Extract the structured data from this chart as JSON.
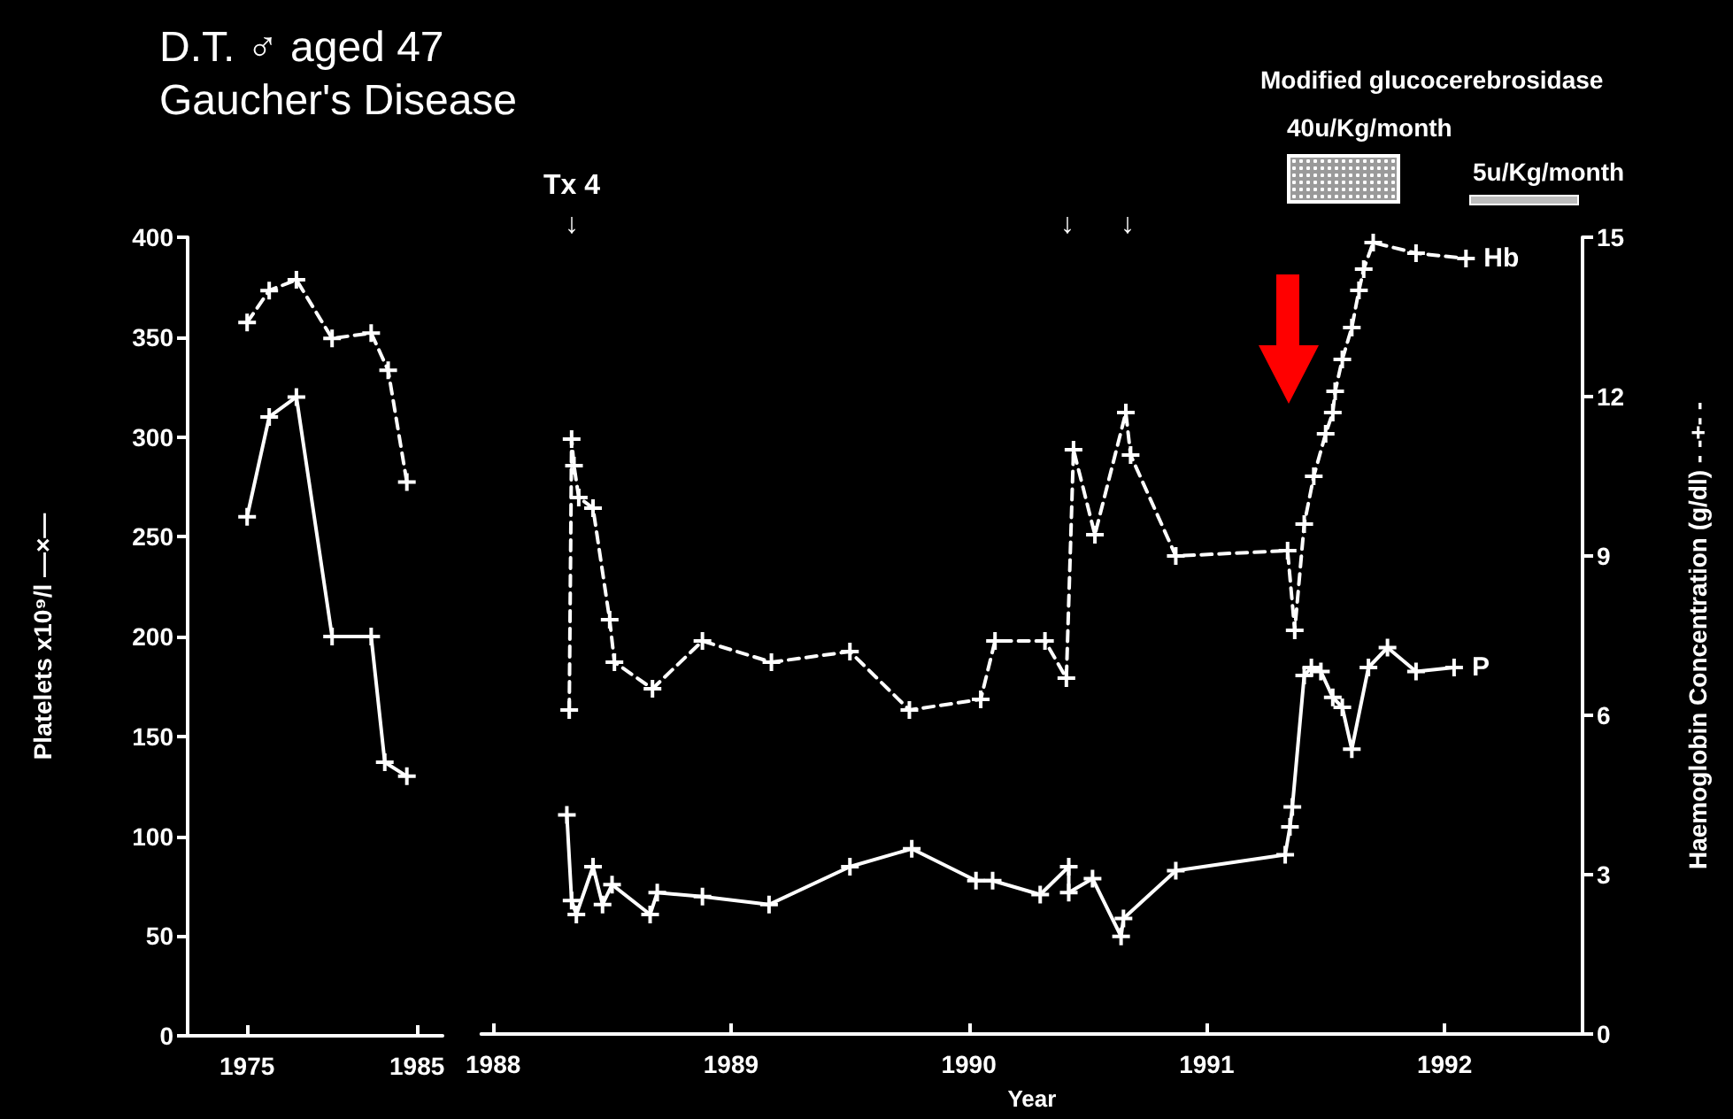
{
  "chart_data": [
    {
      "type": "line",
      "title": "D.T. ♂ aged 47",
      "subtitle": "Gaucher's Disease",
      "ylabel": "Platelets x10⁹/l —×—",
      "xlim": [
        1971.5,
        1986.5
      ],
      "xticks": [
        1975,
        1985
      ],
      "ylim": [
        0,
        400
      ],
      "yticks": [
        0,
        50,
        100,
        150,
        200,
        250,
        300,
        350,
        400
      ],
      "y2lim": [
        0,
        15
      ],
      "series": [
        {
          "color": "#ffffff",
          "marker": "cross",
          "line_style": "solid",
          "x": [
            1975,
            1976.3,
            1977.9,
            1980,
            1982.3,
            1983.1,
            1984.4
          ],
          "values": [
            260,
            310,
            320,
            200,
            200,
            137,
            130
          ]
        },
        {
          "color": "#ffffff",
          "marker": "cross",
          "line_style": "dashed",
          "axis": "y2",
          "x": [
            1975,
            1976.3,
            1977.9,
            1980,
            1982.3,
            1983.3,
            1984.4
          ],
          "values": [
            13.4,
            14.0,
            14.2,
            13.1,
            13.2,
            12.5,
            10.4
          ]
        }
      ]
    },
    {
      "type": "line",
      "xlabel": "Year",
      "y2label": "Haemoglobin Concentration (g/dl) - -+- -",
      "xlim": [
        1987.95,
        1992.58
      ],
      "xticks": [
        1988,
        1989,
        1990,
        1991,
        1992
      ],
      "ylim": [
        0,
        400
      ],
      "y2lim": [
        0,
        15
      ],
      "y2ticks": [
        0,
        3,
        6,
        9,
        12,
        15
      ],
      "annotations": [
        "Modified glucocerebrosidase",
        "40u/Kg/month",
        "5u/Kg/month",
        "Tx 4",
        "↓",
        "↓",
        "↓"
      ],
      "series": [
        {
          "name": "P",
          "color": "#ffffff",
          "marker": "cross",
          "line_style": "solid",
          "x": [
            1988.31,
            1988.33,
            1988.35,
            1988.42,
            1988.46,
            1988.5,
            1988.66,
            1988.69,
            1988.88,
            1989.16,
            1989.5,
            1989.76,
            1990.03,
            1990.1,
            1990.3,
            1990.42,
            1990.42,
            1990.52,
            1990.64,
            1990.65,
            1990.87,
            1991.33,
            1991.35,
            1991.36,
            1991.41,
            1991.44,
            1991.48,
            1991.53,
            1991.57,
            1991.61,
            1991.68,
            1991.76,
            1991.88,
            1992.04
          ],
          "values": [
            110,
            67,
            60,
            84,
            65,
            75,
            60,
            71,
            69,
            65,
            84,
            93,
            77,
            77,
            70,
            84,
            71,
            78,
            49,
            58,
            82,
            90,
            104,
            114,
            180,
            184,
            182,
            169,
            164,
            143,
            184,
            194,
            182,
            184
          ]
        },
        {
          "name": "Hb",
          "color": "#ffffff",
          "marker": "cross",
          "line_style": "dashed",
          "axis": "y2",
          "x": [
            1988.32,
            1988.33,
            1988.34,
            1988.36,
            1988.42,
            1988.49,
            1988.51,
            1988.67,
            1988.88,
            1989.17,
            1989.5,
            1989.75,
            1990.05,
            1990.11,
            1990.32,
            1990.41,
            1990.44,
            1990.53,
            1990.66,
            1990.68,
            1990.87,
            1991.34,
            1991.37,
            1991.41,
            1991.45,
            1991.5,
            1991.53,
            1991.54,
            1991.57,
            1991.61,
            1991.64,
            1991.66,
            1991.7,
            1991.88,
            1992.09
          ],
          "values": [
            6.1,
            11.2,
            10.7,
            10.1,
            9.9,
            7.8,
            7.0,
            6.5,
            7.4,
            7.0,
            7.2,
            6.1,
            6.3,
            7.4,
            7.4,
            6.7,
            11.0,
            9.4,
            11.7,
            10.9,
            9.0,
            9.1,
            7.6,
            9.6,
            10.5,
            11.3,
            11.7,
            12.1,
            12.7,
            13.3,
            14.0,
            14.4,
            14.9,
            14.7,
            14.6
          ]
        }
      ]
    }
  ]
}
